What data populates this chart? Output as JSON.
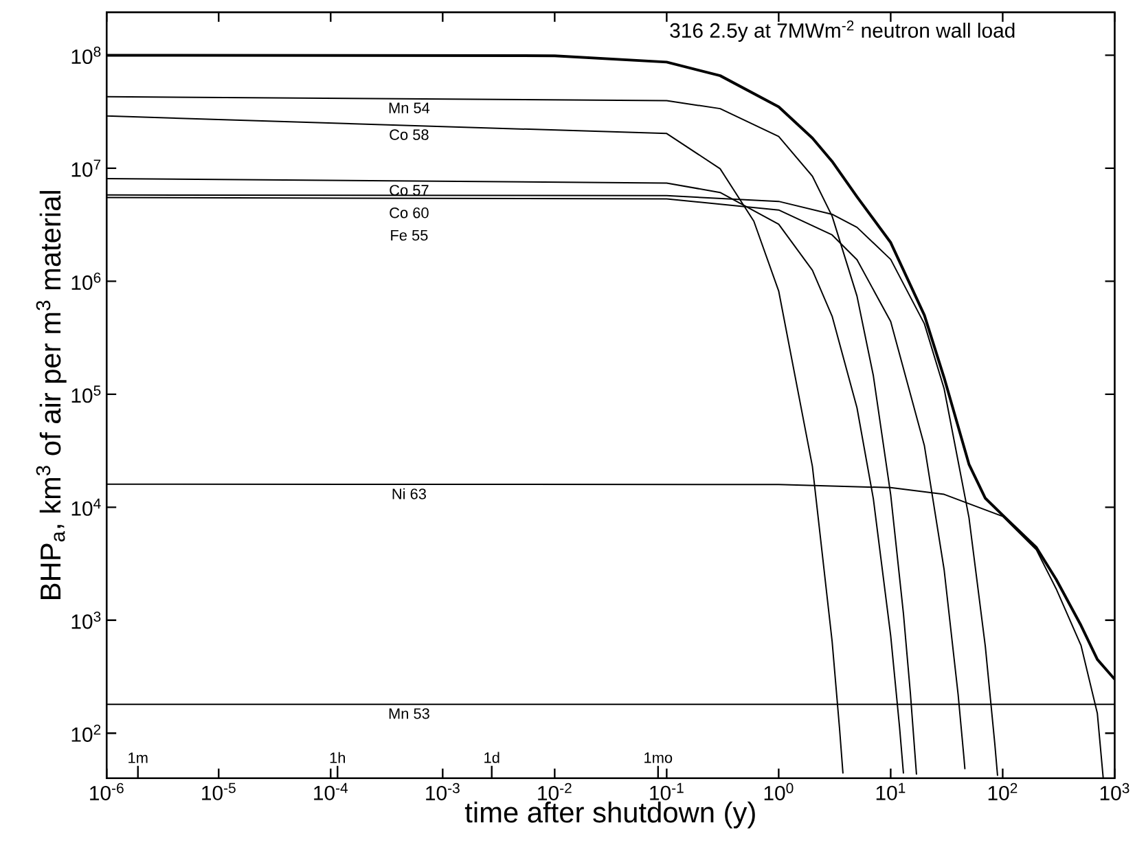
{
  "chart_data": {
    "type": "line",
    "title": "316  2.5y at 7MWm$^{-2}$ neutron wall load",
    "xlabel": "time after shutdown (y)",
    "ylabel": "BHP$_{a}$, km$^{3}$ of air per m$^{3}$ material",
    "log": "xy",
    "marker": "none",
    "line_style": "solid",
    "grid": false,
    "xlim": [
      1e-06,
      1000
    ],
    "ylim": [
      40,
      240000000
    ],
    "xticks": [
      {
        "value": 1e-06,
        "label": "10$^{-6}$"
      },
      {
        "value": 1e-05,
        "label": "10$^{-5}$"
      },
      {
        "value": 0.0001,
        "label": "10$^{-4}$"
      },
      {
        "value": 0.001,
        "label": "10$^{-3}$"
      },
      {
        "value": 0.01,
        "label": "10$^{-2}$"
      },
      {
        "value": 0.1,
        "label": "10$^{-1}$"
      },
      {
        "value": 1,
        "label": "10$^{0}$"
      },
      {
        "value": 10,
        "label": "10$^{1}$"
      },
      {
        "value": 100,
        "label": "10$^{2}$"
      },
      {
        "value": 1000,
        "label": "10$^{3}$"
      }
    ],
    "yticks": [
      {
        "value": 100,
        "label": "10$^{2}$"
      },
      {
        "value": 1000,
        "label": "10$^{3}$"
      },
      {
        "value": 10000,
        "label": "10$^{4}$"
      },
      {
        "value": 100000,
        "label": "10$^{5}$"
      },
      {
        "value": 1000000,
        "label": "10$^{6}$"
      },
      {
        "value": 10000000,
        "label": "10$^{7}$"
      },
      {
        "value": 100000000,
        "label": "10$^{8}$"
      }
    ],
    "series": [
      {
        "color": "#000000",
        "x": [
          1e-06,
          0.01,
          0.1,
          0.3,
          1,
          2,
          3,
          5,
          10,
          20,
          30,
          50,
          70,
          100,
          200,
          300,
          500,
          700,
          1000
        ],
        "values": [
          100000000,
          99000000,
          87000000,
          66000000,
          35000000,
          18500000,
          11500000,
          5600000,
          2200000,
          500000,
          140000,
          24000,
          12000,
          8500,
          4400,
          2300,
          900,
          450,
          300
        ]
      },
      {
        "name": "Mn 54",
        "color": "#000000",
        "x": [
          1e-06,
          0.1,
          0.3,
          1,
          2,
          3,
          5,
          7,
          10,
          13,
          15,
          17
        ],
        "values": [
          43000000,
          39600000,
          33700000,
          19100000,
          8500000,
          3770000,
          740000,
          146000,
          12900,
          1140,
          224,
          43
        ]
      },
      {
        "name": "Co 58",
        "color": "#000000",
        "x": [
          1e-06,
          0.1,
          0.3,
          0.6,
          1,
          2,
          3,
          3.5,
          3.75
        ],
        "values": [
          29000000,
          20300000,
          9900000,
          3400000,
          820000,
          23000,
          650,
          108,
          44
        ]
      },
      {
        "name": "Co 57",
        "color": "#000000",
        "x": [
          1e-06,
          0.1,
          0.3,
          1,
          2,
          3,
          5,
          7,
          10,
          12,
          13
        ],
        "values": [
          8100000,
          7400000,
          6100000,
          3200000,
          1250000,
          490000,
          76000,
          11900,
          730,
          113,
          44
        ]
      },
      {
        "name": "Co 60",
        "color": "#000000",
        "x": [
          1e-06,
          0.1,
          1,
          3,
          5,
          10,
          20,
          30,
          50,
          70,
          85,
          90
        ],
        "values": [
          5800000,
          5720000,
          5090000,
          3910000,
          3000000,
          1560000,
          420000,
          112000,
          8100,
          585,
          81,
          42
        ]
      },
      {
        "name": "Fe 55",
        "color": "#000000",
        "x": [
          1e-06,
          0.1,
          1,
          3,
          5,
          10,
          20,
          30,
          40,
          45,
          46
        ],
        "values": [
          5500000,
          5360000,
          4270000,
          2570000,
          1550000,
          440000,
          35000,
          2800,
          220,
          62,
          48
        ]
      },
      {
        "name": "Ni 63",
        "color": "#000000",
        "x": [
          1e-06,
          1,
          10,
          30,
          100,
          200,
          300,
          500,
          700,
          790
        ],
        "values": [
          16000,
          15900,
          14900,
          13000,
          8300,
          4200,
          1900,
          600,
          150,
          40
        ]
      },
      {
        "name": "Mn 53",
        "color": "#000000",
        "x": [
          1e-06,
          1000
        ],
        "values": [
          180,
          180
        ]
      }
    ],
    "annotations": [
      "1m",
      "1h",
      "1d",
      "1mo"
    ]
  }
}
